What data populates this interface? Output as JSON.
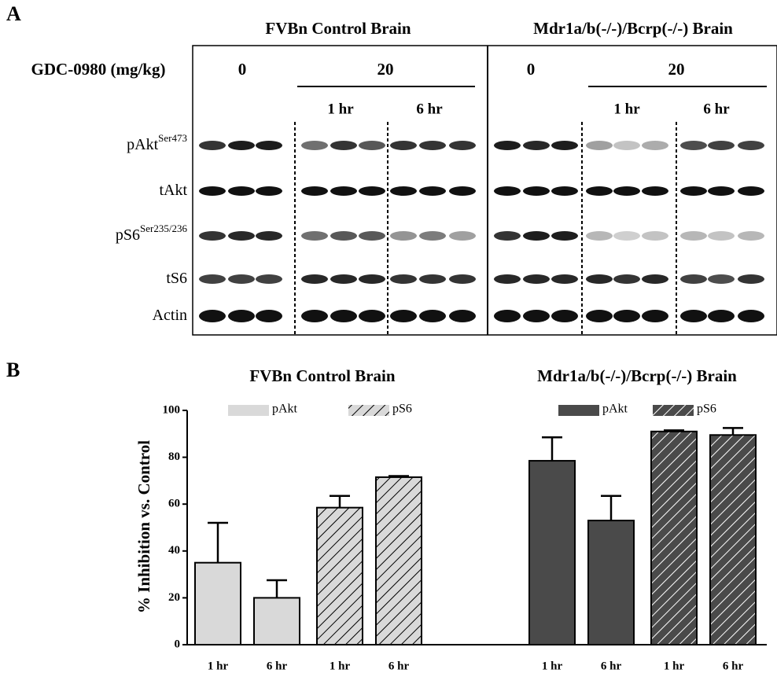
{
  "panel_a": {
    "panel_label": "A",
    "headers": [
      "FVBn Control Brain",
      "Mdr1a/b(-/-)/Bcrp(-/-) Brain"
    ],
    "dose_label": "GDC-0980 (mg/kg)",
    "doses": [
      "0",
      "20",
      "0",
      "20"
    ],
    "times": [
      "1 hr",
      "6 hr",
      "1 hr",
      "6 hr"
    ],
    "rows": [
      {
        "name": "pAkt",
        "sup": "Ser473"
      },
      {
        "name": "tAkt"
      },
      {
        "name": "pS6",
        "sup": "Ser235/236"
      },
      {
        "name": "tS6"
      },
      {
        "name": "Actin"
      }
    ]
  },
  "chart_data": {
    "type": "bar",
    "panel_label": "B",
    "ylabel": "% Inhibition vs. Control",
    "ylim": [
      0,
      100
    ],
    "yticks": [
      0,
      20,
      40,
      60,
      80,
      100
    ],
    "groups": [
      {
        "title": "FVBn Control Brain",
        "categories": [
          "1 hr",
          "6 hr",
          "1 hr",
          "6 hr"
        ],
        "series": [
          {
            "name": "pAkt",
            "color": "#d9d9d9",
            "hatch": false,
            "values": [
              35,
              20,
              null,
              null
            ],
            "errors": [
              17,
              7.5,
              null,
              null
            ]
          },
          {
            "name": "pS6",
            "color": "#d9d9d9",
            "hatch": true,
            "values": [
              null,
              null,
              58.5,
              71.5
            ],
            "errors": [
              null,
              null,
              5,
              0.5
            ]
          }
        ]
      },
      {
        "title": "Mdr1a/b(-/-)/Bcrp(-/-) Brain",
        "categories": [
          "1 hr",
          "6 hr",
          "1 hr",
          "6 hr"
        ],
        "series": [
          {
            "name": "pAkt",
            "color": "#4a4a4a",
            "hatch": false,
            "values": [
              78.5,
              53,
              null,
              null
            ],
            "errors": [
              10,
              10.5,
              null,
              null
            ]
          },
          {
            "name": "pS6",
            "color": "#4a4a4a",
            "hatch": true,
            "values": [
              null,
              null,
              91,
              89.5
            ],
            "errors": [
              null,
              null,
              0.5,
              3
            ]
          }
        ]
      }
    ]
  }
}
